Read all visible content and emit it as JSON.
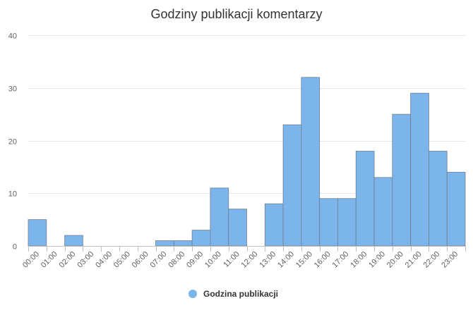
{
  "chart_data": {
    "type": "bar",
    "title": "Godziny publikacji komentarzy",
    "xlabel": "",
    "ylabel": "",
    "categories": [
      "00:00",
      "01:00",
      "02:00",
      "03:00",
      "04:00",
      "05:00",
      "06:00",
      "07:00",
      "08:00",
      "09:00",
      "10:00",
      "11:00",
      "12:00",
      "13:00",
      "14:00",
      "15:00",
      "16:00",
      "17:00",
      "18:00",
      "19:00",
      "20:00",
      "21:00",
      "22:00",
      "23:00"
    ],
    "series": [
      {
        "name": "Godzina publikacji",
        "color": "#7cb5ec",
        "values": [
          5,
          0,
          2,
          0,
          0,
          0,
          0,
          1,
          1,
          3,
          11,
          7,
          0,
          8,
          23,
          32,
          9,
          9,
          18,
          13,
          25,
          29,
          18,
          14
        ]
      }
    ],
    "ylim": [
      0,
      40
    ],
    "yticks": [
      0,
      10,
      20,
      30,
      40
    ],
    "grid": true,
    "legend": "bottom-center"
  }
}
